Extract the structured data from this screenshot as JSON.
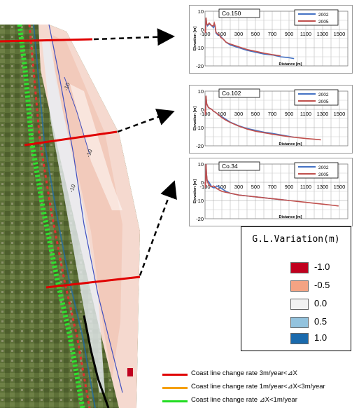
{
  "panels": [
    {
      "profile": "Co.150",
      "ylabel": "Elevation [m]",
      "xlabel": "Distance [m]",
      "xticks": [
        "-100",
        "100",
        "300",
        "500",
        "700",
        "900",
        "1100",
        "1300",
        "1500"
      ],
      "yticks": [
        "10",
        "0",
        "-10",
        "-20"
      ],
      "series": [
        {
          "name": "2002",
          "color": "#4472c4",
          "points": [
            [
              -100,
              0
            ],
            [
              -95,
              -2
            ],
            [
              -88,
              6
            ],
            [
              -80,
              3
            ],
            [
              -70,
              2
            ],
            [
              -50,
              3
            ],
            [
              -20,
              2
            ],
            [
              0,
              1
            ],
            [
              10,
              2
            ],
            [
              20,
              1.5
            ],
            [
              30,
              -2
            ],
            [
              50,
              -3
            ],
            [
              70,
              -3
            ],
            [
              90,
              -4
            ],
            [
              110,
              -5
            ],
            [
              130,
              -6
            ],
            [
              150,
              -7
            ],
            [
              200,
              -8.5
            ],
            [
              300,
              -10
            ],
            [
              400,
              -11.5
            ],
            [
              500,
              -12.5
            ],
            [
              600,
              -13.5
            ],
            [
              700,
              -14
            ],
            [
              800,
              -15
            ],
            [
              900,
              -15.5
            ],
            [
              960,
              -16
            ]
          ]
        },
        {
          "name": "2005",
          "color": "#c0504d",
          "points": [
            [
              -100,
              0
            ],
            [
              -95,
              -2
            ],
            [
              -88,
              6.5
            ],
            [
              -80,
              3
            ],
            [
              -70,
              2.5
            ],
            [
              -50,
              3.5
            ],
            [
              -20,
              2
            ],
            [
              0,
              2
            ],
            [
              10,
              3.5
            ],
            [
              20,
              2
            ],
            [
              30,
              -1.5
            ],
            [
              50,
              -2.5
            ],
            [
              70,
              -3
            ],
            [
              90,
              -4.5
            ],
            [
              110,
              -5
            ],
            [
              130,
              -6
            ],
            [
              150,
              -7
            ],
            [
              200,
              -8
            ],
            [
              300,
              -9.5
            ],
            [
              400,
              -11
            ],
            [
              500,
              -12
            ],
            [
              600,
              -13
            ],
            [
              700,
              -13.8
            ],
            [
              800,
              -14.5
            ]
          ]
        }
      ]
    },
    {
      "profile": "Co.102",
      "ylabel": "Elevation [m]",
      "xlabel": "Distance [m]",
      "xticks": [
        "-100",
        "100",
        "300",
        "500",
        "700",
        "900",
        "1100",
        "1300",
        "1500"
      ],
      "yticks": [
        "10",
        "0",
        "-10",
        "-20"
      ],
      "series": [
        {
          "name": "2002",
          "color": "#4472c4",
          "points": [
            [
              -100,
              0
            ],
            [
              -95,
              -3
            ],
            [
              -88,
              7
            ],
            [
              -80,
              3
            ],
            [
              -70,
              2
            ],
            [
              -60,
              1
            ],
            [
              -40,
              0.5
            ],
            [
              -20,
              0
            ],
            [
              0,
              -1
            ],
            [
              20,
              -1.5
            ],
            [
              60,
              -3
            ],
            [
              100,
              -4
            ],
            [
              150,
              -5.5
            ],
            [
              200,
              -7
            ],
            [
              300,
              -9
            ],
            [
              400,
              -10.5
            ],
            [
              500,
              -11.5
            ],
            [
              600,
              -12.5
            ],
            [
              700,
              -13.2
            ],
            [
              800,
              -14
            ],
            [
              900,
              -14.8
            ],
            [
              960,
              -15.3
            ]
          ]
        },
        {
          "name": "2005",
          "color": "#c0504d",
          "points": [
            [
              -100,
              0
            ],
            [
              -95,
              -3
            ],
            [
              -88,
              7.5
            ],
            [
              -80,
              3
            ],
            [
              -70,
              2
            ],
            [
              -60,
              1
            ],
            [
              -40,
              0.5
            ],
            [
              -20,
              0
            ],
            [
              0,
              -1
            ],
            [
              20,
              -1.5
            ],
            [
              60,
              -3
            ],
            [
              100,
              -4.5
            ],
            [
              150,
              -6
            ],
            [
              200,
              -7.2
            ],
            [
              300,
              -9.2
            ],
            [
              400,
              -10.8
            ],
            [
              500,
              -12
            ],
            [
              600,
              -12.8
            ],
            [
              700,
              -13.6
            ],
            [
              800,
              -14.3
            ],
            [
              900,
              -15
            ],
            [
              1000,
              -15.5
            ],
            [
              1100,
              -16
            ],
            [
              1200,
              -16.4
            ],
            [
              1280,
              -16.7
            ]
          ]
        }
      ]
    },
    {
      "profile": "Co.34",
      "ylabel": "Elevation [m]",
      "xlabel": "Distance [m]",
      "xticks": [
        "-100",
        "100",
        "300",
        "500",
        "700",
        "900",
        "1100",
        "1300",
        "1500"
      ],
      "yticks": [
        "10",
        "0",
        "-10",
        "-20"
      ],
      "series": [
        {
          "name": "2002",
          "color": "#4472c4",
          "points": [
            [
              -100,
              0
            ],
            [
              -95,
              -3
            ],
            [
              -88,
              10
            ],
            [
              -82,
              4
            ],
            [
              -75,
              1
            ],
            [
              -60,
              0.5
            ],
            [
              -40,
              -1
            ],
            [
              -20,
              -2.5
            ],
            [
              0,
              -3
            ],
            [
              20,
              -3
            ],
            [
              40,
              -2
            ],
            [
              60,
              -2.5
            ],
            [
              100,
              -3.5
            ],
            [
              150,
              -5
            ],
            [
              200,
              -6
            ],
            [
              300,
              -7
            ],
            [
              400,
              -7.5
            ],
            [
              500,
              -8
            ],
            [
              600,
              -8.5
            ],
            [
              700,
              -9
            ],
            [
              800,
              -9.5
            ],
            [
              900,
              -10
            ]
          ]
        },
        {
          "name": "2005",
          "color": "#c0504d",
          "points": [
            [
              -100,
              0
            ],
            [
              -95,
              -3
            ],
            [
              -88,
              10
            ],
            [
              -82,
              4
            ],
            [
              -75,
              1
            ],
            [
              -60,
              -1
            ],
            [
              -40,
              -2
            ],
            [
              -20,
              -2.5
            ],
            [
              0,
              -2
            ],
            [
              20,
              -2.5
            ],
            [
              40,
              -3.5
            ],
            [
              60,
              -4
            ],
            [
              100,
              -5
            ],
            [
              150,
              -5.5
            ],
            [
              200,
              -6
            ],
            [
              300,
              -7
            ],
            [
              400,
              -7.5
            ],
            [
              500,
              -8
            ],
            [
              600,
              -8.5
            ],
            [
              700,
              -9
            ],
            [
              800,
              -9.5
            ],
            [
              900,
              -10
            ],
            [
              1000,
              -10.5
            ],
            [
              1100,
              -11
            ],
            [
              1200,
              -11.5
            ],
            [
              1300,
              -12
            ],
            [
              1400,
              -12.5
            ],
            [
              1490,
              -13
            ]
          ]
        }
      ]
    }
  ],
  "legend": {
    "title": "G.L.Variation(m)",
    "items": [
      {
        "label": "-1.0",
        "color": "#c0001e"
      },
      {
        "label": "-0.5",
        "color": "#f4a383"
      },
      {
        "label": "0.0",
        "color": "#f2f2f2"
      },
      {
        "label": "0.5",
        "color": "#93c3de"
      },
      {
        "label": "1.0",
        "color": "#1a6aad"
      }
    ]
  },
  "map": {
    "contour_labels": [
      "-10",
      "-10",
      "-10"
    ]
  },
  "coast_legend": [
    {
      "label": "Coast line change rate 3m/year<⊿X",
      "color": "#e00000"
    },
    {
      "label": "Coast line change rate 1m/year<⊿X<3m/year",
      "color": "#f5a000"
    },
    {
      "label": "Coast line change rate ⊿X<1m/year",
      "color": "#22dd22"
    }
  ]
}
